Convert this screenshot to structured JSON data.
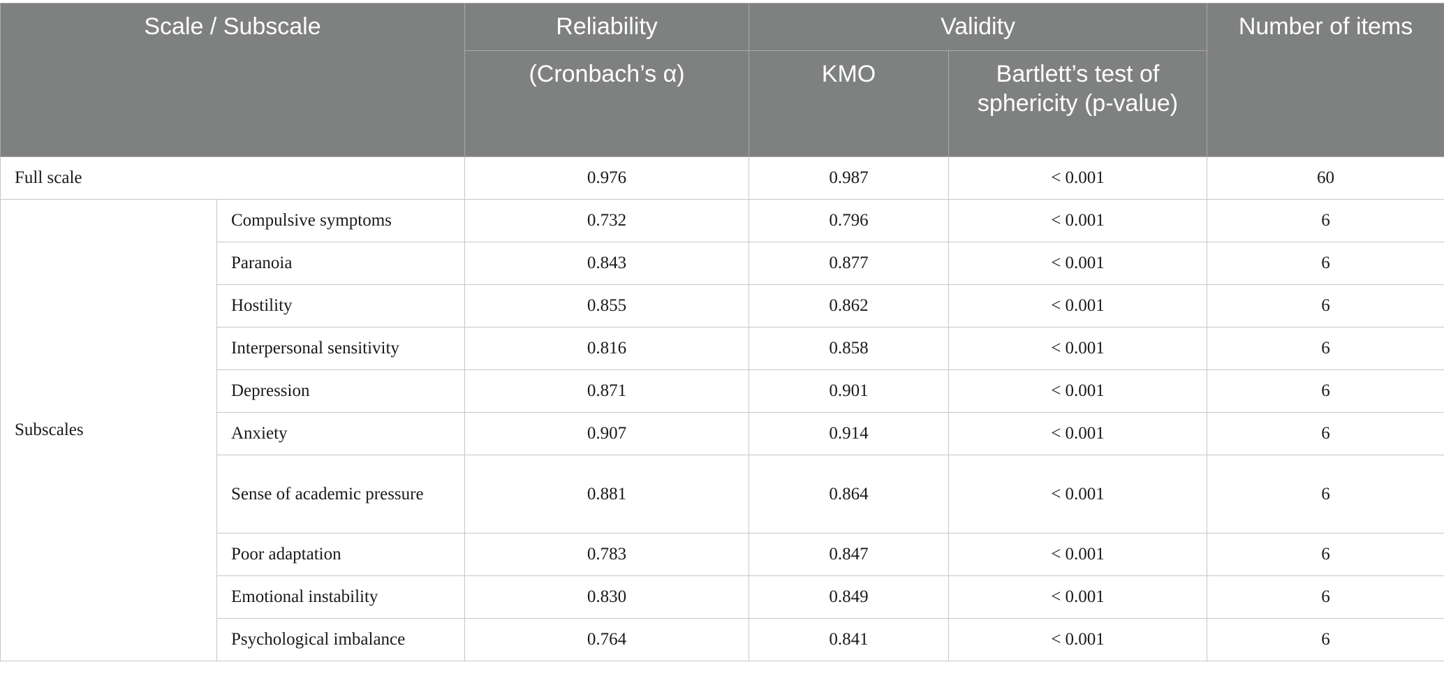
{
  "header": {
    "scale_subscale": "Scale / Subscale",
    "reliability": "Reliability",
    "cronbach": "(Cronbach’s α)",
    "validity": "Validity",
    "kmo": "KMO",
    "bartlett": "Bartlett’s test of sphericity (p-value)",
    "number_of_items": "Number of items"
  },
  "full_scale": {
    "label": "Full scale",
    "alpha": "0.976",
    "kmo": "0.987",
    "bartlett": "< 0.001",
    "items": "60"
  },
  "subscales_label": "Subscales",
  "subscales": [
    {
      "name": "Compulsive symptoms",
      "alpha": "0.732",
      "kmo": "0.796",
      "bartlett": "< 0.001",
      "items": "6"
    },
    {
      "name": "Paranoia",
      "alpha": "0.843",
      "kmo": "0.877",
      "bartlett": "< 0.001",
      "items": "6"
    },
    {
      "name": "Hostility",
      "alpha": "0.855",
      "kmo": "0.862",
      "bartlett": "< 0.001",
      "items": "6"
    },
    {
      "name": "Interpersonal sensitivity",
      "alpha": "0.816",
      "kmo": "0.858",
      "bartlett": "< 0.001",
      "items": "6"
    },
    {
      "name": "Depression",
      "alpha": "0.871",
      "kmo": "0.901",
      "bartlett": "< 0.001",
      "items": "6"
    },
    {
      "name": "Anxiety",
      "alpha": "0.907",
      "kmo": "0.914",
      "bartlett": "< 0.001",
      "items": "6"
    },
    {
      "name": "Sense of academic pressure",
      "alpha": "0.881",
      "kmo": "0.864",
      "bartlett": "< 0.001",
      "items": "6"
    },
    {
      "name": "Poor adaptation",
      "alpha": "0.783",
      "kmo": "0.847",
      "bartlett": "< 0.001",
      "items": "6"
    },
    {
      "name": "Emotional instability",
      "alpha": "0.830",
      "kmo": "0.849",
      "bartlett": "< 0.001",
      "items": "6"
    },
    {
      "name": "Psychological imbalance",
      "alpha": "0.764",
      "kmo": "0.841",
      "bartlett": "< 0.001",
      "items": "6"
    }
  ]
}
